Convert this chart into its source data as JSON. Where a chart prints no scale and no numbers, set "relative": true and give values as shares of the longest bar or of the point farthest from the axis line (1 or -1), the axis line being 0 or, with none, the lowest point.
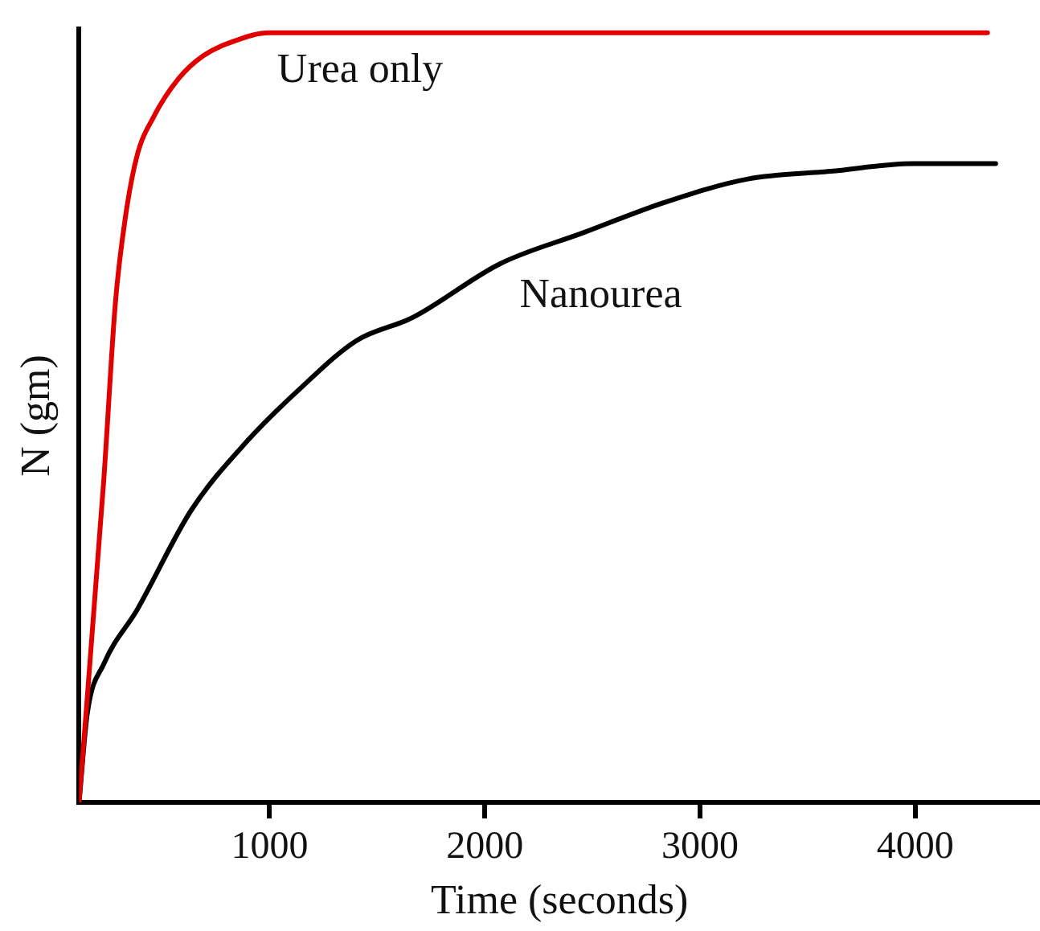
{
  "chart_data": {
    "type": "line",
    "xlabel": "Time (seconds)",
    "ylabel": "N (gm)",
    "relative": true,
    "xlim": [
      115,
      4580
    ],
    "xticks": [
      1000,
      2000,
      3000,
      4000
    ],
    "grid": false,
    "legend": false,
    "marker": "none",
    "line_style": "solid",
    "series": [
      {
        "name": "Urea only",
        "color": "#e00000",
        "x": [
          115,
          230,
          284,
          330,
          384,
          460,
          576,
          691,
          844,
          998,
          4336
        ],
        "values": [
          0,
          0.42,
          0.65,
          0.76,
          0.84,
          0.89,
          0.94,
          0.97,
          0.99,
          1,
          1
        ]
      },
      {
        "name": "Nanourea",
        "color": "#000000",
        "x": [
          115,
          153,
          230,
          384,
          637,
          898,
          1151,
          1404,
          1665,
          2072,
          2456,
          2840,
          3223,
          3607,
          3991,
          4374
        ],
        "values": [
          0,
          0.115,
          0.18,
          0.25,
          0.38,
          0.47,
          0.54,
          0.6,
          0.63,
          0.7,
          0.74,
          0.78,
          0.81,
          0.82,
          0.83,
          0.83
        ]
      }
    ]
  }
}
